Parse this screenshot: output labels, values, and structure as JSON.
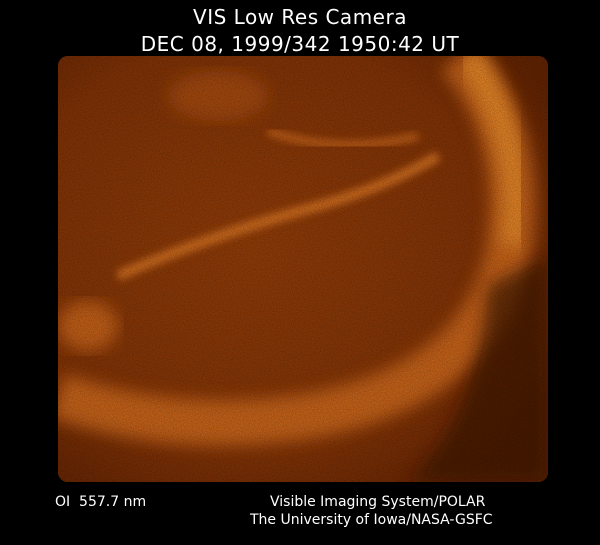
{
  "header": {
    "title": "VIS Low Res Camera",
    "timestamp": "DEC 08, 1999/342 1950:42 UT"
  },
  "image": {
    "subject": "auroral oval emission image",
    "colormap_dark": "#5a1e02",
    "colormap_mid": "#9a4510",
    "colormap_bright": "#e08a2a"
  },
  "footer": {
    "wavelength": "OI  557.7 nm",
    "instrument": "Visible Imaging System/POLAR",
    "institution": "The University of Iowa/NASA-GSFC"
  }
}
